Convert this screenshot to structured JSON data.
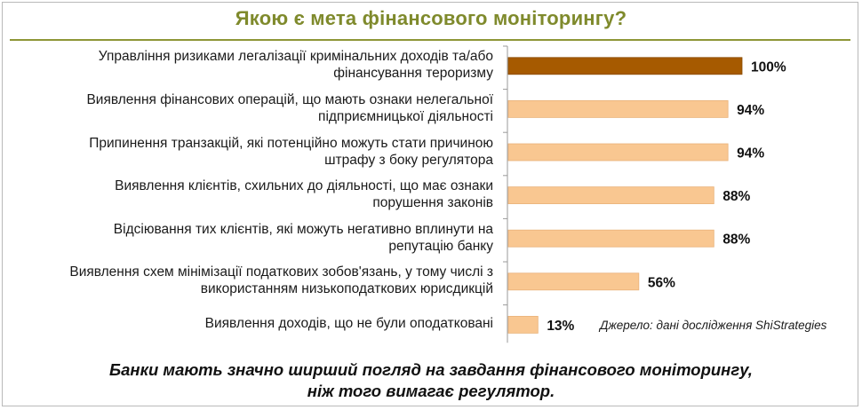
{
  "chart_data": {
    "type": "bar",
    "orientation": "horizontal",
    "title": "Якою є мета фінансового моніторингу?",
    "categories": [
      [
        "Управління ризиками легалізації кримінальних доходів та/або",
        "фінансування тероризму"
      ],
      [
        "Виявлення фінансових операцій, що мають ознаки нелегальної",
        "підприємницької діяльності"
      ],
      [
        "Припинення транзакцій, які потенційно можуть стати причиною",
        "штрафу з боку регулятора"
      ],
      [
        "Виявлення клієнтів, схильних до діяльності, що має ознаки",
        "порушення законів"
      ],
      [
        "Відсіювання тих клієнтів, які можуть негативно вплинути на",
        "репутацію банку"
      ],
      [
        "Виявлення схем мінімізації податкових зобов'язань, у тому числі з",
        "використанням низькоподаткових юрисдикцій"
      ],
      [
        "Виявлення доходів, що не були оподатковані"
      ]
    ],
    "values": [
      100,
      94,
      94,
      88,
      88,
      56,
      13
    ],
    "value_labels": [
      "100%",
      "94%",
      "94%",
      "88%",
      "88%",
      "56%",
      "13%"
    ],
    "xlim": [
      0,
      100
    ],
    "grid": false,
    "legend": "none",
    "highlight_index": 0,
    "colors": {
      "highlight": "#a65a00",
      "bar": "#f9c791",
      "bar_edge": "#e9b27a",
      "title": "#7f8a2c"
    },
    "source": "Джерело: дані дослідження ShiStrategies"
  },
  "conclusion": {
    "line1": "Банки мають значно ширший погляд на завдання фінансового моніторингу,",
    "line2": "ніж того вимагає регулятор."
  }
}
